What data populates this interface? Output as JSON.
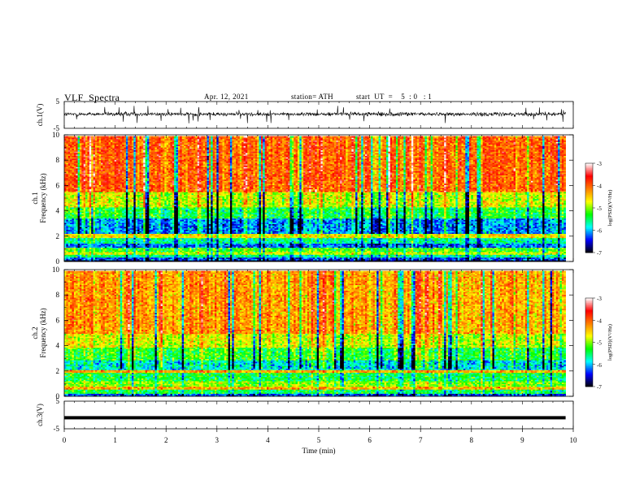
{
  "header": {
    "title": "VLF  Spectra",
    "date": "Apr. 12, 2021",
    "station": "station= ATH",
    "start_ut": "start  UT  =    5  : 0   : 1"
  },
  "chart_data": [
    {
      "type": "line",
      "panel": "ch1-waveform",
      "ylabel": "ch.1(V)",
      "yticks": [
        "5",
        "-5"
      ],
      "ylim": [
        -5,
        5
      ],
      "xlim": [
        0,
        10
      ],
      "description_values": {
        "baseline_V": 0.3,
        "noise_amplitude_V": 1.2,
        "spike_amplitude_V": 3.5
      }
    },
    {
      "type": "heatmap",
      "panel": "ch1-spectrogram",
      "ylabel": "ch.1\nFrequency (kHz)",
      "yticks": [
        "0",
        "2",
        "4",
        "6",
        "8",
        "10"
      ],
      "ylim": [
        0,
        10
      ],
      "xlim": [
        0,
        9.85
      ],
      "colorbar": {
        "label": "log(PSD)(V²/Hz)",
        "ticks": [
          "-3",
          "-4",
          "-5",
          "-6",
          "-7"
        ],
        "range": [
          -7,
          -3
        ]
      },
      "bands_kHz_logPSD": [
        [
          0.0,
          0.15,
          -7.0
        ],
        [
          0.15,
          0.3,
          -6.3
        ],
        [
          0.3,
          0.55,
          -5.6
        ],
        [
          0.55,
          0.8,
          -4.8
        ],
        [
          0.8,
          1.1,
          -5.2
        ],
        [
          1.1,
          1.4,
          -6.2
        ],
        [
          1.4,
          1.9,
          -5.6
        ],
        [
          1.9,
          2.2,
          -4.6
        ],
        [
          2.2,
          3.4,
          -6.1
        ],
        [
          3.4,
          4.3,
          -5.4
        ],
        [
          4.3,
          5.5,
          -4.8
        ],
        [
          5.5,
          9.9,
          -4.0
        ]
      ]
    },
    {
      "type": "heatmap",
      "panel": "ch2-spectrogram",
      "ylabel": "ch.2\nFrequency (kHz)",
      "yticks": [
        "0",
        "2",
        "4",
        "6",
        "8",
        "10"
      ],
      "ylim": [
        0,
        10
      ],
      "xlim": [
        0,
        9.85
      ],
      "colorbar": {
        "label": "log(PSD)(V²/Hz)",
        "ticks": [
          "-3",
          "-4",
          "-5",
          "-6",
          "-7"
        ],
        "range": [
          -7,
          -3
        ]
      },
      "bands_kHz_logPSD": [
        [
          0.0,
          0.2,
          -6.3
        ],
        [
          0.2,
          0.5,
          -5.4
        ],
        [
          0.5,
          0.8,
          -4.3
        ],
        [
          0.8,
          1.2,
          -5.0
        ],
        [
          1.2,
          1.9,
          -5.4
        ],
        [
          1.9,
          2.1,
          -4.3
        ],
        [
          2.1,
          2.9,
          -5.8
        ],
        [
          2.9,
          3.8,
          -5.3
        ],
        [
          3.8,
          5.0,
          -4.8
        ],
        [
          5.0,
          9.9,
          -4.3
        ]
      ]
    },
    {
      "type": "line",
      "panel": "ch3-waveform",
      "ylabel": "ch.3(V)",
      "yticks": [
        "5",
        "-5"
      ],
      "ylim": [
        -5,
        5
      ],
      "xlim": [
        0,
        10
      ],
      "xticks": [
        "0",
        "1",
        "2",
        "3",
        "4",
        "5",
        "6",
        "7",
        "8",
        "9",
        "10"
      ],
      "xlabel": "Time  (min)",
      "description_values": {
        "baseline_V": -1.0
      }
    }
  ],
  "colormap": [
    "#000000",
    "#0000ff",
    "#00ffff",
    "#00ff00",
    "#ffff00",
    "#ff8000",
    "#ff0000",
    "#ffffff"
  ]
}
